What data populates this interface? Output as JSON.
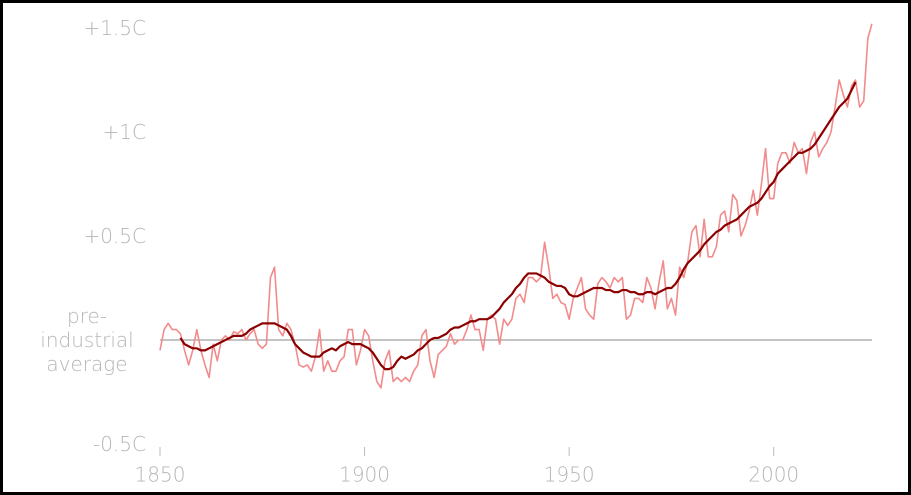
{
  "chart_data": {
    "type": "line",
    "x": [
      1850,
      1851,
      1852,
      1853,
      1854,
      1855,
      1856,
      1857,
      1858,
      1859,
      1860,
      1861,
      1862,
      1863,
      1864,
      1865,
      1866,
      1867,
      1868,
      1869,
      1870,
      1871,
      1872,
      1873,
      1874,
      1875,
      1876,
      1877,
      1878,
      1879,
      1880,
      1881,
      1882,
      1883,
      1884,
      1885,
      1886,
      1887,
      1888,
      1889,
      1890,
      1891,
      1892,
      1893,
      1894,
      1895,
      1896,
      1897,
      1898,
      1899,
      1900,
      1901,
      1902,
      1903,
      1904,
      1905,
      1906,
      1907,
      1908,
      1909,
      1910,
      1911,
      1912,
      1913,
      1914,
      1915,
      1916,
      1917,
      1918,
      1919,
      1920,
      1921,
      1922,
      1923,
      1924,
      1925,
      1926,
      1927,
      1928,
      1929,
      1930,
      1931,
      1932,
      1933,
      1934,
      1935,
      1936,
      1937,
      1938,
      1939,
      1940,
      1941,
      1942,
      1943,
      1944,
      1945,
      1946,
      1947,
      1948,
      1949,
      1950,
      1951,
      1952,
      1953,
      1954,
      1955,
      1956,
      1957,
      1958,
      1959,
      1960,
      1961,
      1962,
      1963,
      1964,
      1965,
      1966,
      1967,
      1968,
      1969,
      1970,
      1971,
      1972,
      1973,
      1974,
      1975,
      1976,
      1977,
      1978,
      1979,
      1980,
      1981,
      1982,
      1983,
      1984,
      1985,
      1986,
      1987,
      1988,
      1989,
      1990,
      1991,
      1992,
      1993,
      1994,
      1995,
      1996,
      1997,
      1998,
      1999,
      2000,
      2001,
      2002,
      2003,
      2004,
      2005,
      2006,
      2007,
      2008,
      2009,
      2010,
      2011,
      2012,
      2013,
      2014,
      2015,
      2016,
      2017,
      2018,
      2019,
      2020,
      2021,
      2022,
      2023,
      2024
    ],
    "series": [
      {
        "color": "#f28b8b",
        "values": [
          -0.05,
          0.05,
          0.08,
          0.05,
          0.05,
          0.03,
          -0.05,
          -0.12,
          -0.05,
          0.05,
          -0.05,
          -0.12,
          -0.18,
          -0.02,
          -0.1,
          0.0,
          0.02,
          0.0,
          0.04,
          0.03,
          0.05,
          0.0,
          0.03,
          0.05,
          -0.02,
          -0.04,
          -0.02,
          0.3,
          0.35,
          0.05,
          0.02,
          0.08,
          0.05,
          -0.02,
          -0.12,
          -0.13,
          -0.12,
          -0.15,
          -0.08,
          0.05,
          -0.15,
          -0.1,
          -0.15,
          -0.15,
          -0.1,
          -0.08,
          0.05,
          0.05,
          -0.12,
          -0.05,
          0.05,
          0.02,
          -0.1,
          -0.2,
          -0.23,
          -0.1,
          -0.05,
          -0.2,
          -0.18,
          -0.2,
          -0.18,
          -0.2,
          -0.15,
          -0.12,
          0.02,
          0.05,
          -0.1,
          -0.18,
          -0.07,
          -0.05,
          -0.03,
          0.03,
          -0.02,
          0.0,
          0.0,
          0.05,
          0.12,
          0.05,
          0.05,
          -0.05,
          0.1,
          0.12,
          0.1,
          -0.02,
          0.1,
          0.07,
          0.1,
          0.2,
          0.22,
          0.18,
          0.3,
          0.3,
          0.28,
          0.3,
          0.47,
          0.35,
          0.2,
          0.22,
          0.18,
          0.17,
          0.1,
          0.2,
          0.25,
          0.3,
          0.15,
          0.12,
          0.1,
          0.27,
          0.3,
          0.28,
          0.25,
          0.3,
          0.28,
          0.3,
          0.1,
          0.12,
          0.2,
          0.2,
          0.18,
          0.3,
          0.25,
          0.15,
          0.28,
          0.38,
          0.15,
          0.2,
          0.12,
          0.35,
          0.3,
          0.38,
          0.52,
          0.55,
          0.4,
          0.58,
          0.4,
          0.4,
          0.45,
          0.6,
          0.62,
          0.52,
          0.7,
          0.67,
          0.5,
          0.55,
          0.62,
          0.72,
          0.6,
          0.75,
          0.92,
          0.68,
          0.68,
          0.85,
          0.9,
          0.9,
          0.85,
          0.95,
          0.9,
          0.92,
          0.8,
          0.95,
          1.0,
          0.88,
          0.92,
          0.95,
          1.0,
          1.12,
          1.25,
          1.18,
          1.12,
          1.22,
          1.25,
          1.12,
          1.15,
          1.45,
          1.52
        ]
      },
      {
        "color": "#8b0000",
        "values": [
          null,
          null,
          null,
          null,
          null,
          0.01,
          -0.02,
          -0.03,
          -0.04,
          -0.04,
          -0.05,
          -0.05,
          -0.04,
          -0.03,
          -0.02,
          -0.01,
          0.0,
          0.01,
          0.02,
          0.02,
          0.02,
          0.03,
          0.05,
          0.06,
          0.07,
          0.08,
          0.08,
          0.08,
          0.08,
          0.07,
          0.06,
          0.05,
          0.02,
          -0.02,
          -0.04,
          -0.06,
          -0.07,
          -0.08,
          -0.08,
          -0.08,
          -0.06,
          -0.05,
          -0.04,
          -0.05,
          -0.03,
          -0.02,
          -0.01,
          -0.02,
          -0.02,
          -0.02,
          -0.03,
          -0.04,
          -0.06,
          -0.09,
          -0.12,
          -0.14,
          -0.14,
          -0.13,
          -0.1,
          -0.08,
          -0.09,
          -0.08,
          -0.07,
          -0.05,
          -0.04,
          -0.02,
          0.0,
          0.01,
          0.01,
          0.02,
          0.03,
          0.05,
          0.06,
          0.06,
          0.07,
          0.08,
          0.09,
          0.09,
          0.1,
          0.1,
          0.1,
          0.11,
          0.13,
          0.15,
          0.18,
          0.2,
          0.22,
          0.25,
          0.27,
          0.3,
          0.32,
          0.32,
          0.32,
          0.31,
          0.3,
          0.28,
          0.27,
          0.26,
          0.26,
          0.25,
          0.22,
          0.21,
          0.21,
          0.22,
          0.23,
          0.24,
          0.25,
          0.25,
          0.25,
          0.24,
          0.24,
          0.23,
          0.23,
          0.24,
          0.24,
          0.23,
          0.23,
          0.22,
          0.22,
          0.23,
          0.23,
          0.22,
          0.23,
          0.24,
          0.25,
          0.25,
          0.27,
          0.3,
          0.34,
          0.37,
          0.39,
          0.41,
          0.43,
          0.46,
          0.48,
          0.5,
          0.52,
          0.53,
          0.55,
          0.56,
          0.57,
          0.58,
          0.6,
          0.62,
          0.64,
          0.65,
          0.66,
          0.68,
          0.71,
          0.74,
          0.76,
          0.8,
          0.82,
          0.84,
          0.86,
          0.88,
          0.9,
          0.9,
          0.91,
          0.92,
          0.94,
          0.97,
          1.0,
          1.03,
          1.06,
          1.09,
          1.12,
          1.14,
          1.16,
          1.2,
          1.24,
          null,
          null,
          null,
          null
        ]
      }
    ],
    "xlim": [
      1850,
      2025
    ],
    "xticks": [
      1850,
      1900,
      1950,
      2000
    ],
    "ylim": [
      -0.5,
      1.5
    ],
    "yticks": [
      {
        "value": -0.5,
        "label": "-0.5C"
      },
      {
        "value": 0,
        "label": "pre-industrial average"
      },
      {
        "value": 0.5,
        "label": "+0.5C"
      },
      {
        "value": 1,
        "label": "+1C"
      },
      {
        "value": 1.5,
        "label": "+1.5C"
      }
    ],
    "zero_line": true
  }
}
